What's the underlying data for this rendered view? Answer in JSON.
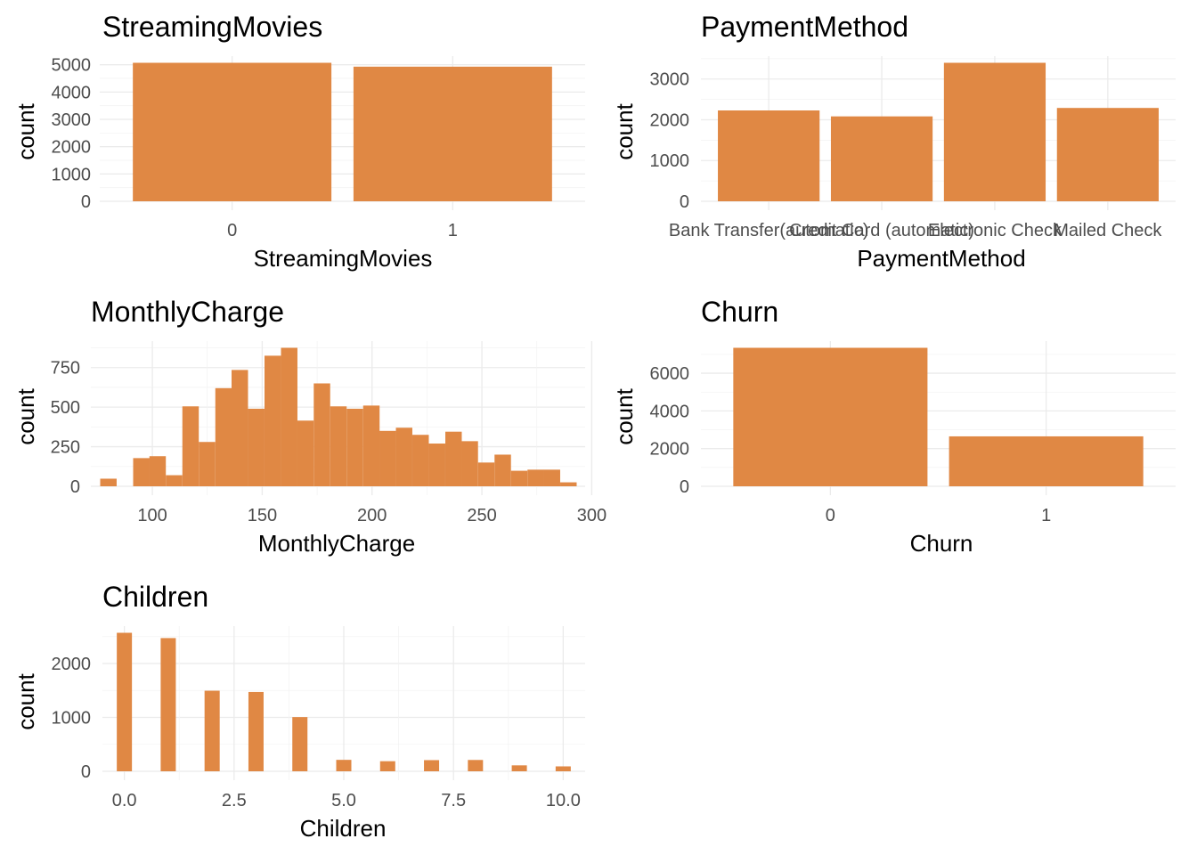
{
  "colors": {
    "bar": "#E08844",
    "major_grid": "#ebebeb",
    "minor_grid": "#f3f3f3",
    "tick_text": "#4d4d4d"
  },
  "chart_data": [
    {
      "id": "streaming",
      "type": "bar",
      "title": "StreamingMovies",
      "xlabel": "StreamingMovies",
      "ylabel": "count",
      "categories": [
        "0",
        "1"
      ],
      "values": [
        5071,
        4929
      ],
      "ylim": [
        0,
        5071
      ],
      "yticks": [
        0,
        1000,
        2000,
        3000,
        4000,
        5000
      ],
      "ytick_labels": [
        "0",
        "1000",
        "2000",
        "3000",
        "4000",
        "5000"
      ],
      "grid": true
    },
    {
      "id": "payment",
      "type": "bar",
      "title": "PaymentMethod",
      "xlabel": "PaymentMethod",
      "ylabel": "count",
      "categories": [
        "Bank Transfer(automatic)",
        "Credit Card (automatic)",
        "Electronic Check",
        "Mailed Check"
      ],
      "values": [
        2229,
        2083,
        3398,
        2290
      ],
      "ylim": [
        0,
        3398
      ],
      "yticks": [
        0,
        1000,
        2000,
        3000
      ],
      "ytick_labels": [
        "0",
        "1000",
        "2000",
        "3000"
      ],
      "grid": true
    },
    {
      "id": "monthly",
      "type": "bar",
      "title": "MonthlyCharge",
      "xlabel": "MonthlyCharge",
      "ylabel": "count",
      "bin_width": 7.48,
      "bin_centers": [
        80.0,
        87.5,
        95.0,
        102.4,
        109.9,
        117.4,
        124.9,
        132.4,
        139.8,
        147.3,
        154.8,
        162.3,
        169.7,
        177.2,
        184.7,
        192.2,
        199.7,
        207.1,
        214.6,
        222.1,
        229.6,
        237.1,
        244.5,
        252.0,
        259.5,
        267.0,
        274.5,
        281.9,
        289.4
      ],
      "values": [
        48,
        0,
        178,
        190,
        70,
        505,
        280,
        620,
        735,
        490,
        825,
        875,
        415,
        650,
        505,
        490,
        510,
        350,
        370,
        325,
        270,
        345,
        285,
        150,
        200,
        98,
        105,
        105,
        25
      ],
      "xlim": [
        72,
        297
      ],
      "ylim": [
        0,
        875
      ],
      "xticks": [
        100,
        150,
        200,
        250,
        300
      ],
      "xtick_labels": [
        "100",
        "150",
        "200",
        "250",
        "300"
      ],
      "yticks": [
        0,
        250,
        500,
        750
      ],
      "ytick_labels": [
        "0",
        "250",
        "500",
        "750"
      ],
      "grid": true
    },
    {
      "id": "churn",
      "type": "bar",
      "title": "Churn",
      "xlabel": "Churn",
      "ylabel": "count",
      "categories": [
        "0",
        "1"
      ],
      "values": [
        7350,
        2650
      ],
      "ylim": [
        0,
        7350
      ],
      "yticks": [
        0,
        2000,
        4000,
        6000
      ],
      "ytick_labels": [
        "0",
        "2000",
        "4000",
        "6000"
      ],
      "grid": true
    },
    {
      "id": "children",
      "type": "bar",
      "title": "Children",
      "xlabel": "Children",
      "ylabel": "count",
      "bin_width": 0.345,
      "bin_centers": [
        0,
        1,
        2,
        3,
        4,
        5,
        6,
        7,
        8,
        9,
        10
      ],
      "values": [
        2570,
        2472,
        1495,
        1472,
        1006,
        212,
        187,
        207,
        210,
        110,
        91
      ],
      "xlim": [
        -0.5,
        10.5
      ],
      "ylim": [
        0,
        2570
      ],
      "xticks": [
        0.0,
        2.5,
        5.0,
        7.5,
        10.0
      ],
      "xtick_labels": [
        "0.0",
        "2.5",
        "5.0",
        "7.5",
        "10.0"
      ],
      "yticks": [
        0,
        1000,
        2000
      ],
      "ytick_labels": [
        "0",
        "1000",
        "2000"
      ],
      "grid": true
    }
  ]
}
